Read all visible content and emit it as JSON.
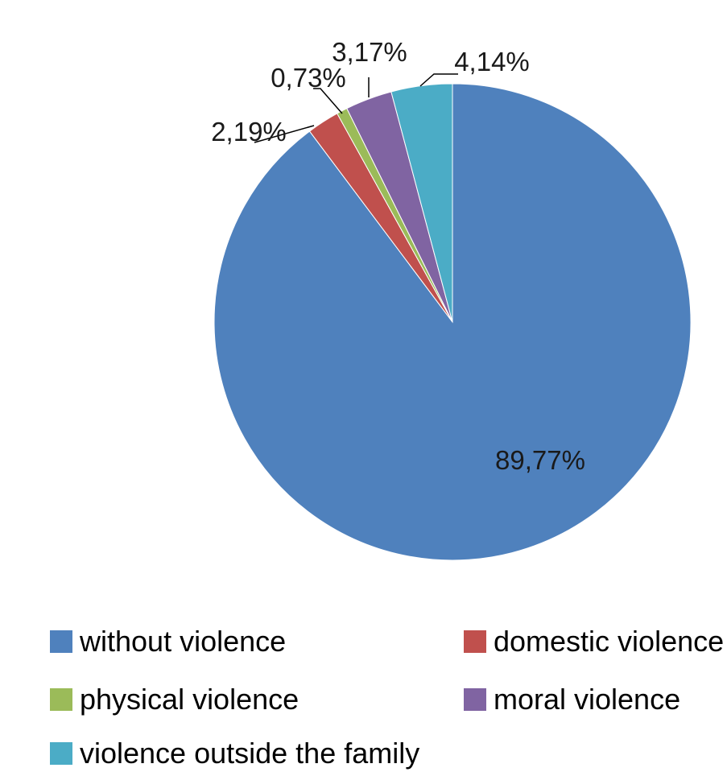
{
  "chart_data": {
    "type": "pie",
    "start": "12 o'clock, clockwise",
    "legend_position": "bottom",
    "slices": [
      {
        "label": "without violence",
        "value": 89.77,
        "display": "89,77%",
        "color": "#4F81BD"
      },
      {
        "label": "domestic violence",
        "value": 2.19,
        "display": "2,19%",
        "color": "#C0504D"
      },
      {
        "label": "physical violence",
        "value": 0.73,
        "display": "0,73%",
        "color": "#9BBB59"
      },
      {
        "label": "moral violence",
        "value": 3.17,
        "display": "3,17%",
        "color": "#8064A2"
      },
      {
        "label": "violence outside the family",
        "value": 4.14,
        "display": "4,14%",
        "color": "#4BACC6"
      }
    ]
  }
}
